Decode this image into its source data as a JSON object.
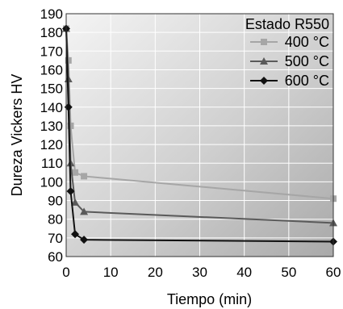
{
  "chart_data": {
    "type": "line",
    "title": "",
    "xlabel": "Tiempo (min)",
    "ylabel": "Dureza Vickers HV",
    "xlim": [
      0,
      60
    ],
    "ylim": [
      60,
      190
    ],
    "xticks": [
      0,
      10,
      20,
      30,
      40,
      50,
      60
    ],
    "yticks": [
      60,
      70,
      80,
      90,
      100,
      110,
      120,
      130,
      140,
      150,
      160,
      170,
      180,
      190
    ],
    "grid": true,
    "background": "gradient-gray",
    "legend": {
      "title": "Estado R550",
      "position": "top-right"
    },
    "series": [
      {
        "name": "400 °C",
        "color": "#a6a6a6",
        "marker": "square",
        "x": [
          0,
          0.5,
          1,
          2,
          4,
          60
        ],
        "y": [
          182,
          165,
          130,
          105,
          103,
          91
        ]
      },
      {
        "name": "500 °C",
        "color": "#5a5a5a",
        "marker": "triangle",
        "x": [
          0,
          0.5,
          1,
          2,
          4,
          60
        ],
        "y": [
          182,
          155,
          110,
          89,
          84,
          78
        ]
      },
      {
        "name": "600 °C",
        "color": "#111111",
        "marker": "diamond",
        "x": [
          0,
          0.5,
          1,
          2,
          4,
          60
        ],
        "y": [
          182,
          140,
          95,
          72,
          69,
          68
        ]
      }
    ]
  }
}
